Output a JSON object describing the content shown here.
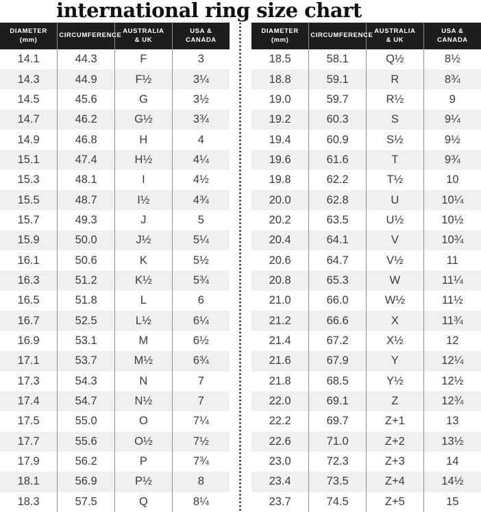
{
  "title": "international ring size chart",
  "colors": {
    "header_bg": "#1e1c1c",
    "stripe": "#f0f1ee",
    "divider_dot": "#4a4a4a",
    "cell_text": "#3b3b3b",
    "separator": "#8f8f8f",
    "title_color": "#111111"
  },
  "header_columns": [
    {
      "id": "diameter-mm",
      "lines": [
        "DIAMETER",
        "(mm)"
      ]
    },
    {
      "id": "circumference",
      "lines": [
        "CIRCUMFERENCE"
      ]
    },
    {
      "id": "australia-uk",
      "lines": [
        "AUSTRALIA",
        "& UK"
      ]
    },
    {
      "id": "usa-canada",
      "lines": [
        "USA &",
        "CANADA"
      ]
    }
  ],
  "chart_data": {
    "type": "table",
    "title": "international ring size chart",
    "columns": [
      "DIAMETER (mm)",
      "CIRCUMFERENCE",
      "AUSTRALIA & UK",
      "USA & CANADA"
    ],
    "tables": [
      {
        "position": "left",
        "rows": [
          [
            "14.1",
            "44.3",
            "F",
            "3"
          ],
          [
            "14.3",
            "44.9",
            "F½",
            "3¼"
          ],
          [
            "14.5",
            "45.6",
            "G",
            "3½"
          ],
          [
            "14.7",
            "46.2",
            "G½",
            "3¾"
          ],
          [
            "14.9",
            "46.8",
            "H",
            "4"
          ],
          [
            "15.1",
            "47.4",
            "H½",
            "4¼"
          ],
          [
            "15.3",
            "48.1",
            "I",
            "4½"
          ],
          [
            "15.5",
            "48.7",
            "I½",
            "4¾"
          ],
          [
            "15.7",
            "49.3",
            "J",
            "5"
          ],
          [
            "15.9",
            "50.0",
            "J½",
            "5¼"
          ],
          [
            "16.1",
            "50.6",
            "K",
            "5½"
          ],
          [
            "16.3",
            "51.2",
            "K½",
            "5¾"
          ],
          [
            "16.5",
            "51.8",
            "L",
            "6"
          ],
          [
            "16.7",
            "52.5",
            "L½",
            "6¼"
          ],
          [
            "16.9",
            "53.1",
            "M",
            "6½"
          ],
          [
            "17.1",
            "53.7",
            "M½",
            "6¾"
          ],
          [
            "17.3",
            "54.3",
            "N",
            "7"
          ],
          [
            "17.4",
            "54.7",
            "N½",
            "7"
          ],
          [
            "17.5",
            "55.0",
            "O",
            "7¼"
          ],
          [
            "17.7",
            "55.6",
            "O½",
            "7½"
          ],
          [
            "17.9",
            "56.2",
            "P",
            "7¾"
          ],
          [
            "18.1",
            "56.9",
            "P½",
            "8"
          ],
          [
            "18.3",
            "57.5",
            "Q",
            "8¼"
          ]
        ]
      },
      {
        "position": "right",
        "rows": [
          [
            "18.5",
            "58.1",
            "Q½",
            "8½"
          ],
          [
            "18.8",
            "59.1",
            "R",
            "8¾"
          ],
          [
            "19.0",
            "59.7",
            "R½",
            "9"
          ],
          [
            "19.2",
            "60.3",
            "S",
            "9¼"
          ],
          [
            "19.4",
            "60.9",
            "S½",
            "9½"
          ],
          [
            "19.6",
            "61.6",
            "T",
            "9¾"
          ],
          [
            "19.8",
            "62.2",
            "T½",
            "10"
          ],
          [
            "20.0",
            "62.8",
            "U",
            "10¼"
          ],
          [
            "20.2",
            "63.5",
            "U½",
            "10½"
          ],
          [
            "20.4",
            "64.1",
            "V",
            "10¾"
          ],
          [
            "20.6",
            "64.7",
            "V½",
            "11"
          ],
          [
            "20.8",
            "65.3",
            "W",
            "11¼"
          ],
          [
            "21.0",
            "66.0",
            "W½",
            "11½"
          ],
          [
            "21.2",
            "66.6",
            "X",
            "11¾"
          ],
          [
            "21.4",
            "67.2",
            "X½",
            "12"
          ],
          [
            "21.6",
            "67.9",
            "Y",
            "12¼"
          ],
          [
            "21.8",
            "68.5",
            "Y½",
            "12½"
          ],
          [
            "22.0",
            "69.1",
            "Z",
            "12¾"
          ],
          [
            "22.2",
            "69.7",
            "Z+1",
            "13"
          ],
          [
            "22.6",
            "71.0",
            "Z+2",
            "13½"
          ],
          [
            "23.0",
            "72.3",
            "Z+3",
            "14"
          ],
          [
            "23.4",
            "73.5",
            "Z+4",
            "14½"
          ],
          [
            "23.7",
            "74.5",
            "Z+5",
            "15"
          ]
        ]
      }
    ]
  }
}
